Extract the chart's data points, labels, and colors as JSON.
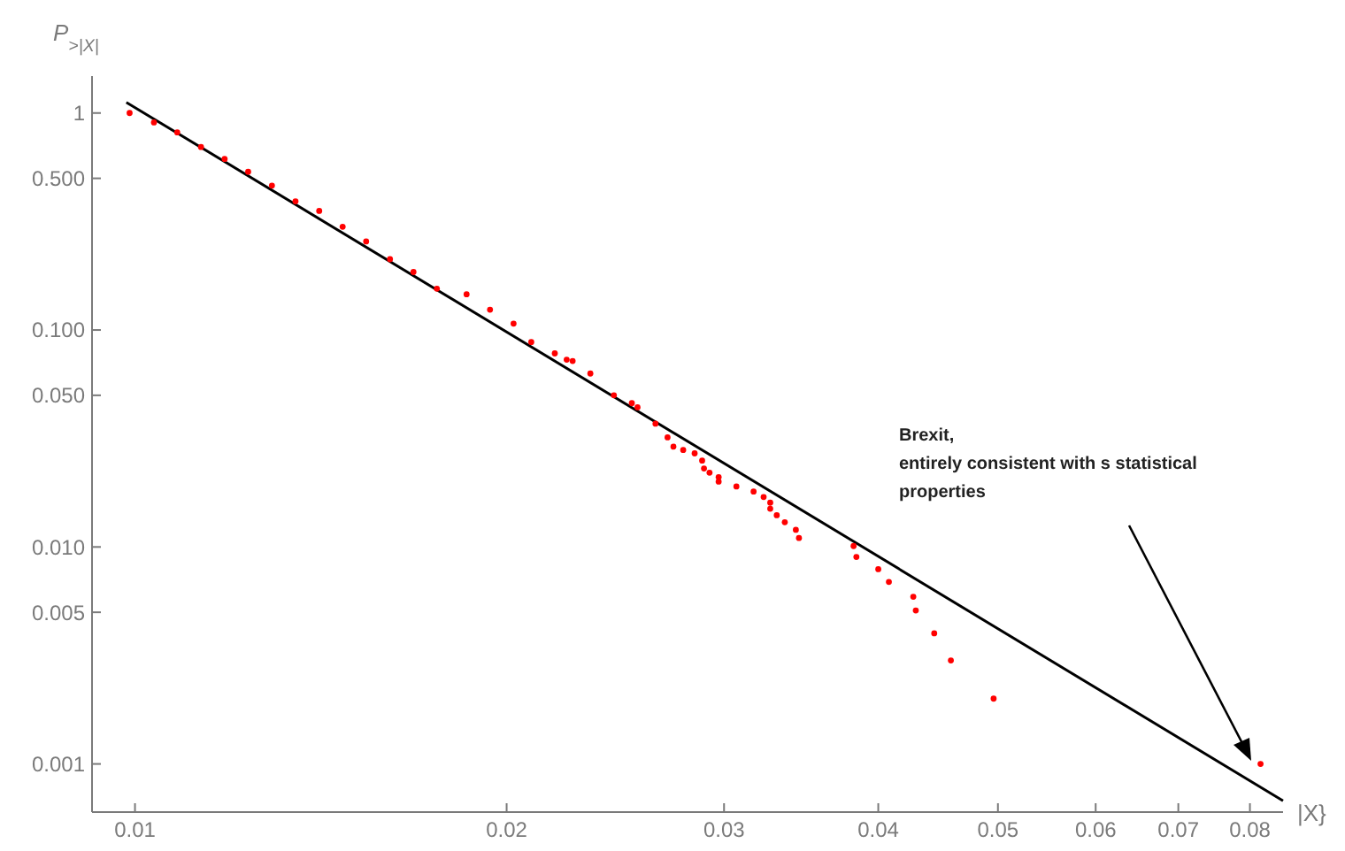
{
  "chart_data": {
    "type": "scatter",
    "log": "xy",
    "xlabel": "|X}",
    "ylabel": "P$_{>|X|}$",
    "xlim": [
      0.00923,
      0.0851
    ],
    "ylim": [
      0.0006,
      1.48
    ],
    "xticks": [
      0.01,
      0.02,
      0.03,
      0.04,
      0.05,
      0.06,
      0.07,
      0.08
    ],
    "yticks": [
      1,
      {
        "value": 0.5,
        "label": "0.500"
      },
      {
        "value": 0.1,
        "label": "0.100"
      },
      {
        "value": 0.05,
        "label": "0.050"
      },
      {
        "value": 0.01,
        "label": "0.010"
      },
      {
        "value": 0.005,
        "label": "0.005"
      },
      0.001
    ],
    "grid": false,
    "series": [
      {
        "marker": "circle",
        "color": "#ff0000",
        "x": [
          0.0099,
          0.01036,
          0.01082,
          0.01131,
          0.01182,
          0.01235,
          0.01291,
          0.01349,
          0.0141,
          0.01473,
          0.01539,
          0.01609,
          0.01681,
          0.01756,
          0.01856,
          0.01939,
          0.02026,
          0.02094,
          0.02188,
          0.02237,
          0.02262,
          0.02338,
          0.02443,
          0.02526,
          0.02553,
          0.0264,
          0.027,
          0.0273,
          0.0278,
          0.0284,
          0.0288,
          0.0289,
          0.0292,
          0.0297,
          0.0297,
          0.0307,
          0.0317,
          0.0323,
          0.0327,
          0.0327,
          0.0331,
          0.0336,
          0.0343,
          0.0345,
          0.0382,
          0.0384,
          0.04,
          0.0408,
          0.0427,
          0.0429,
          0.0444,
          0.0458,
          0.0496,
          0.0816
        ],
        "values": [
          1.0,
          0.905,
          0.814,
          0.697,
          0.614,
          0.536,
          0.463,
          0.392,
          0.354,
          0.299,
          0.256,
          0.212,
          0.185,
          0.155,
          0.146,
          0.124,
          0.107,
          0.088,
          0.078,
          0.073,
          0.072,
          0.063,
          0.05,
          0.046,
          0.044,
          0.037,
          0.032,
          0.029,
          0.028,
          0.027,
          0.025,
          0.023,
          0.022,
          0.021,
          0.02,
          0.019,
          0.018,
          0.017,
          0.016,
          0.015,
          0.014,
          0.013,
          0.012,
          0.011,
          0.0101,
          0.009,
          0.0079,
          0.0069,
          0.0059,
          0.0051,
          0.004,
          0.003,
          0.002,
          0.001
        ]
      },
      {
        "type": "line",
        "color": "#000000",
        "x": [
          0.00984,
          0.0851
        ],
        "values": [
          1.12,
          0.000676
        ]
      }
    ],
    "annotations": [
      "Brexit,\nentirely consistent with s statistical\nproperties"
    ]
  }
}
